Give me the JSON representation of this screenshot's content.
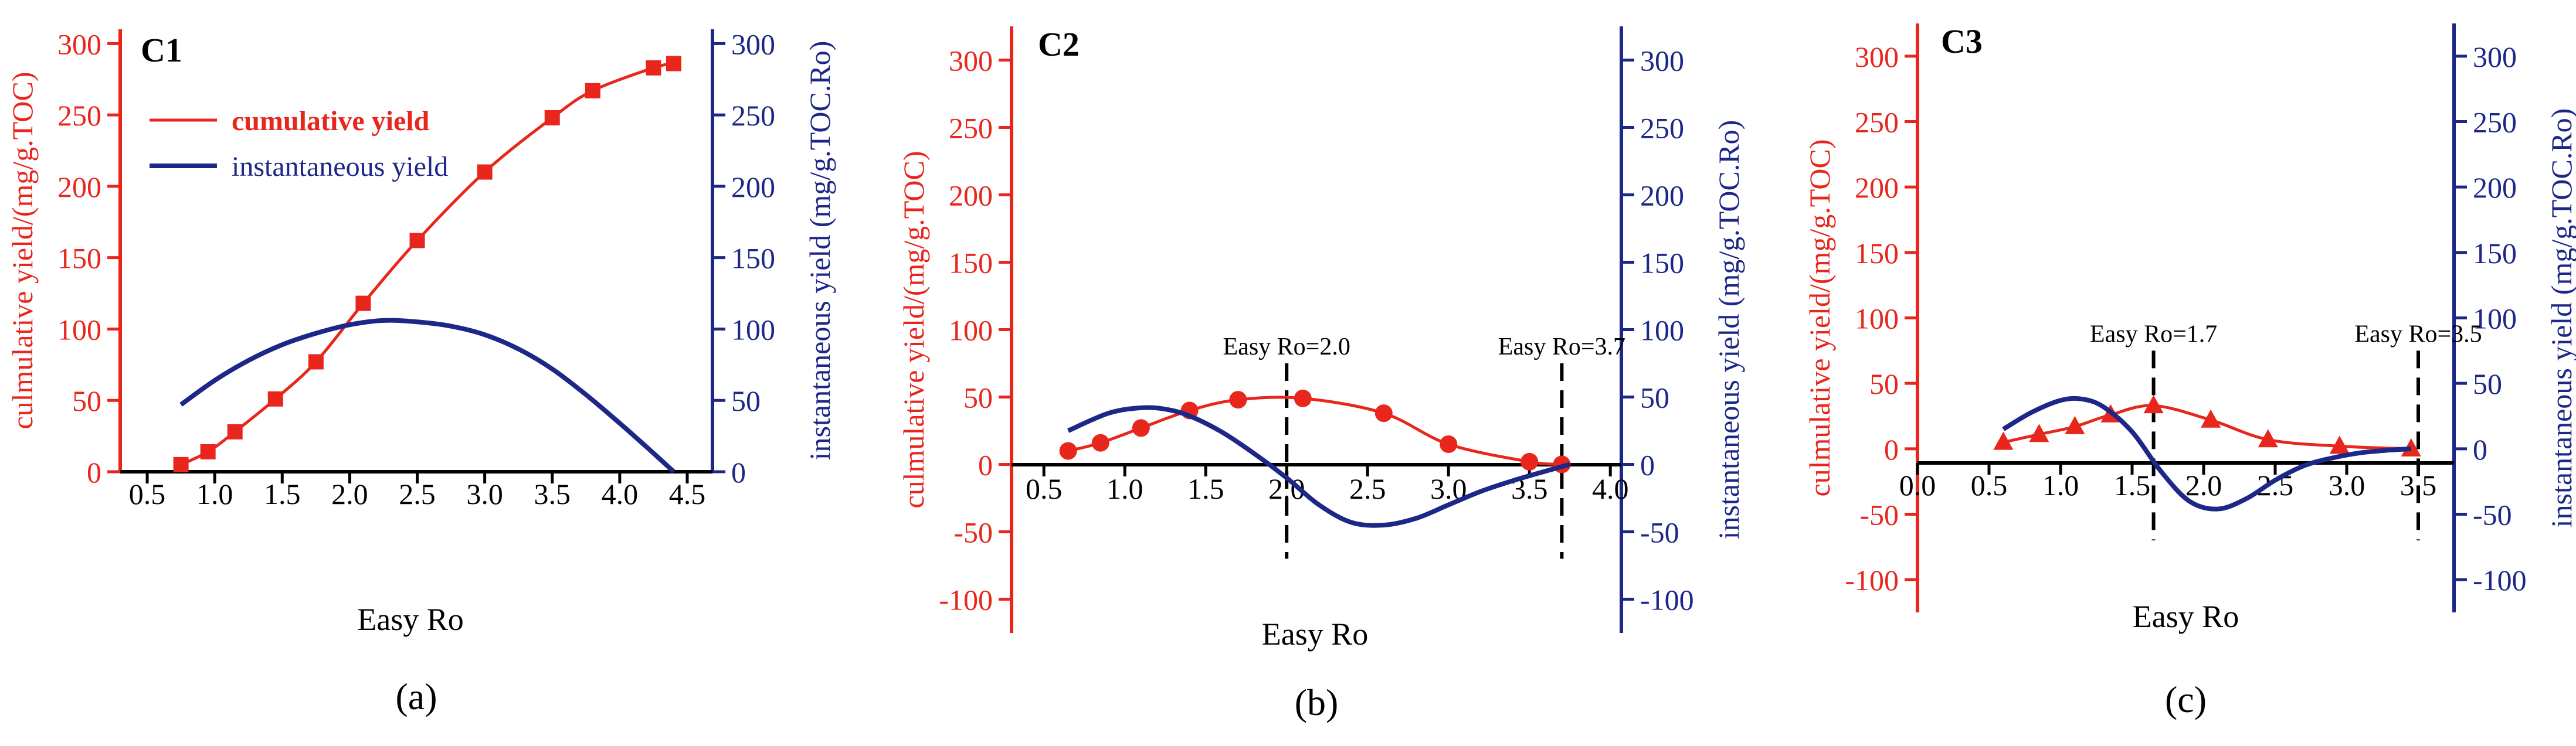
{
  "colors": {
    "cumulative": "#e8261c",
    "instantaneous": "#1c2788",
    "axis": "#000000"
  },
  "chart_data": [
    {
      "type": "line",
      "panel": "(a)",
      "title": "C1",
      "xlabel": "Easy Ro",
      "xlim": [
        0.3,
        4.6
      ],
      "xticks": [
        "0.5",
        "1.0",
        "1.5",
        "2.0",
        "2.5",
        "3.0",
        "3.5",
        "4.0",
        "4.5"
      ],
      "ylabel_left": "culmulative yield/(mg/g.TOC)",
      "ylim_left": [
        0,
        310
      ],
      "yticks_left": [
        "0",
        "50",
        "100",
        "150",
        "200",
        "250",
        "300"
      ],
      "ylabel_right": "instantaneous yield (mg/g.TOC.Ro)",
      "ylim_right": [
        0,
        310
      ],
      "yticks_right": [
        "0",
        "50",
        "100",
        "150",
        "200",
        "250",
        "300"
      ],
      "legend": {
        "position": "top-left",
        "entries": [
          "cumulative yield",
          "instantaneous yield"
        ]
      },
      "series": [
        {
          "name": "cumulative yield",
          "axis": "left",
          "marker": "square",
          "x": [
            0.75,
            0.95,
            1.15,
            1.45,
            1.75,
            2.1,
            2.5,
            3.0,
            3.5,
            3.8,
            4.25,
            4.4
          ],
          "y": [
            5,
            14,
            28,
            51,
            77,
            118,
            162,
            210,
            248,
            267,
            283,
            286
          ]
        },
        {
          "name": "instantaneous yield",
          "axis": "right",
          "marker": "none",
          "x": [
            0.75,
            1.0,
            1.25,
            1.5,
            1.75,
            2.0,
            2.25,
            2.5,
            2.75,
            3.0,
            3.25,
            3.5,
            3.75,
            4.0,
            4.25,
            4.4
          ],
          "y": [
            47,
            64,
            78,
            89,
            97,
            103,
            106,
            105,
            102,
            96,
            86,
            72,
            54,
            34,
            13,
            0
          ]
        }
      ],
      "annotations": []
    },
    {
      "type": "line",
      "panel": "(b)",
      "title": "C2",
      "xlabel": "Easy Ro",
      "xlim": [
        0.3,
        4.05
      ],
      "xticks": [
        "0.5",
        "1.0",
        "1.5",
        "2.0",
        "2.5",
        "3.0",
        "3.5",
        "4.0"
      ],
      "ylabel_left": "culmulative yield/(mg/g.TOC)",
      "ylim_left": [
        -125,
        325
      ],
      "yticks_left": [
        "-100",
        "-50",
        "0",
        "50",
        "100",
        "150",
        "200",
        "250",
        "300"
      ],
      "ylabel_right": "instantaneous yield (mg/g.TOC.Ro)",
      "ylim_right": [
        -125,
        325
      ],
      "yticks_right": [
        "-100",
        "-50",
        "0",
        "50",
        "100",
        "150",
        "200",
        "250",
        "300"
      ],
      "series": [
        {
          "name": "cumulative yield",
          "axis": "left",
          "marker": "circle",
          "x": [
            0.65,
            0.85,
            1.1,
            1.4,
            1.7,
            2.1,
            2.6,
            3.0,
            3.5,
            3.7
          ],
          "y": [
            10,
            16,
            27,
            40,
            48,
            49,
            38,
            15,
            2,
            0
          ]
        },
        {
          "name": "instantaneous yield",
          "axis": "right",
          "marker": "none",
          "x": [
            0.65,
            0.9,
            1.1,
            1.25,
            1.4,
            1.6,
            1.8,
            2.0,
            2.2,
            2.4,
            2.6,
            2.8,
            3.0,
            3.2,
            3.4,
            3.6,
            3.75
          ],
          "y": [
            25,
            38,
            42,
            41,
            36,
            24,
            8,
            -10,
            -30,
            -43,
            -45,
            -40,
            -30,
            -20,
            -12,
            -5,
            0
          ]
        }
      ],
      "annotations": [
        {
          "text": "Easy Ro=2.0",
          "x": 2.0
        },
        {
          "text": "Easy Ro=3.7",
          "x": 3.7
        }
      ]
    },
    {
      "type": "line",
      "panel": "(c)",
      "title": "C3",
      "xlabel": "Easy Ro",
      "xlim": [
        0.0,
        3.75
      ],
      "xticks": [
        "0.0",
        "0.5",
        "1.0",
        "1.5",
        "2.0",
        "2.5",
        "3.0",
        "3.5"
      ],
      "ylabel_left": "culmulative yield/(mg/g.TOC)",
      "ylim_left": [
        -125,
        325
      ],
      "yticks_left": [
        "-100",
        "-50",
        "0",
        "50",
        "100",
        "150",
        "200",
        "250",
        "300"
      ],
      "ylabel_right": "instantaneous yield (mg/g.TOC.Ro)",
      "ylim_right": [
        -125,
        325
      ],
      "yticks_right": [
        "-100",
        "-50",
        "0",
        "50",
        "100",
        "150",
        "200",
        "250",
        "300"
      ],
      "series": [
        {
          "name": "cumulative yield",
          "axis": "left",
          "marker": "triangle",
          "x": [
            0.6,
            0.85,
            1.1,
            1.35,
            1.65,
            2.05,
            2.45,
            2.95,
            3.45
          ],
          "y": [
            5,
            11,
            17,
            26,
            33,
            22,
            7,
            2,
            0
          ]
        },
        {
          "name": "instantaneous yield",
          "axis": "right",
          "marker": "none",
          "x": [
            0.6,
            0.8,
            1.0,
            1.15,
            1.3,
            1.5,
            1.7,
            1.9,
            2.1,
            2.3,
            2.5,
            2.7,
            2.9,
            3.1,
            3.3,
            3.45
          ],
          "y": [
            15,
            28,
            37,
            38,
            32,
            13,
            -17,
            -40,
            -46,
            -38,
            -24,
            -13,
            -7,
            -3,
            -1,
            0
          ]
        }
      ],
      "annotations": [
        {
          "text": "Easy Ro=1.7",
          "x": 1.65
        },
        {
          "text": "Easy Ro=3.5",
          "x": 3.5
        }
      ]
    }
  ]
}
